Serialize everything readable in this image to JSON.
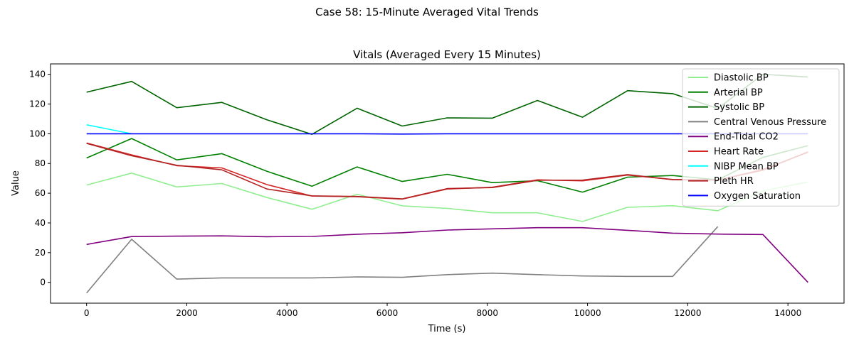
{
  "chart_data": {
    "type": "line",
    "suptitle": "Case 58: 15-Minute Averaged Vital Trends",
    "title": "Vitals (Averaged Every 15 Minutes)",
    "xlabel": "Time (s)",
    "ylabel": "Value",
    "xlim": [
      -720,
      15120
    ],
    "ylim": [
      -14,
      147
    ],
    "xticks": [
      0,
      2000,
      4000,
      6000,
      8000,
      10000,
      12000,
      14000
    ],
    "yticks": [
      0,
      20,
      40,
      60,
      80,
      100,
      120,
      140
    ],
    "legend_position": "top-right",
    "grid": false,
    "x": [
      0,
      900,
      1800,
      2700,
      3600,
      4500,
      5400,
      6300,
      7200,
      8100,
      9000,
      9900,
      10800,
      11700,
      12600,
      13500,
      14400
    ],
    "series": [
      {
        "name": "Diastolic BP",
        "color": "#90ee90",
        "values": [
          65.5,
          73.5,
          64.2,
          66.5,
          57.1,
          49.2,
          59.3,
          51.5,
          49.8,
          46.8,
          46.8,
          41.0,
          50.5,
          51.6,
          48.2,
          61.5,
          67.6
        ]
      },
      {
        "name": "Arterial BP",
        "color": "#008000",
        "values": [
          83.7,
          96.8,
          82.4,
          86.6,
          74.7,
          64.7,
          77.7,
          67.9,
          72.7,
          67.1,
          68.4,
          60.7,
          70.8,
          71.9,
          69.0,
          84.1,
          92.0
        ]
      },
      {
        "name": "Systolic BP",
        "color": "#006400",
        "values": [
          128.0,
          135.2,
          117.5,
          121.1,
          109.4,
          99.6,
          117.2,
          105.2,
          110.7,
          110.5,
          122.4,
          111.1,
          129.0,
          127.0,
          117.0,
          140.0,
          138.2
        ]
      },
      {
        "name": "Central Venous Pressure",
        "color": "#808080",
        "values": [
          -7.1,
          29.0,
          2.2,
          3.0,
          3.0,
          3.0,
          3.7,
          3.4,
          5.2,
          6.2,
          5.2,
          4.3,
          4.0,
          4.0,
          37.5,
          null,
          null
        ]
      },
      {
        "name": "End-Tidal CO2",
        "color": "#800080",
        "values": [
          25.5,
          30.8,
          31.1,
          31.3,
          30.7,
          30.9,
          32.4,
          33.4,
          35.2,
          36.0,
          36.8,
          36.8,
          35.0,
          33.1,
          32.5,
          32.2,
          0.0
        ]
      },
      {
        "name": "Heart Rate",
        "color": "#d62728",
        "values": [
          93.8,
          85.8,
          78.5,
          77.0,
          65.8,
          58.1,
          57.6,
          56.0,
          62.8,
          64.0,
          69.0,
          68.3,
          72.2,
          69.2,
          68.8,
          76.0,
          87.5
        ]
      },
      {
        "name": "NIBP Mean BP",
        "color": "#00ffff",
        "values": [
          106.0,
          100.0,
          null,
          null,
          null,
          null,
          null,
          null,
          null,
          null,
          null,
          null,
          null,
          null,
          null,
          null,
          null
        ]
      },
      {
        "name": "Pleth HR",
        "color": "#b22222",
        "values": [
          93.5,
          85.2,
          78.8,
          75.7,
          62.8,
          58.2,
          57.8,
          56.2,
          63.1,
          63.8,
          68.7,
          68.8,
          72.5,
          69.1,
          68.8,
          75.5,
          87.8
        ]
      },
      {
        "name": "Oxygen Saturation",
        "color": "#0000ff",
        "values": [
          100.0,
          100.0,
          100.0,
          100.0,
          100.0,
          100.0,
          100.0,
          99.8,
          100.0,
          100.0,
          100.0,
          100.0,
          100.0,
          100.0,
          100.0,
          100.0,
          100.0
        ]
      }
    ]
  }
}
